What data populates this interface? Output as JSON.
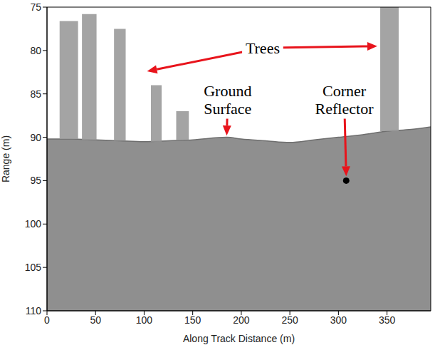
{
  "chart_data": {
    "type": "image",
    "xlabel": "Along Track Distance (m)",
    "ylabel": "Range (m)",
    "xlim": [
      0,
      395
    ],
    "ylim": [
      75,
      110
    ],
    "xticks": [
      0,
      50,
      100,
      150,
      200,
      250,
      300,
      350
    ],
    "yticks": [
      75,
      80,
      85,
      90,
      95,
      100,
      105,
      110
    ],
    "grid": false,
    "ground_surface": {
      "x": [
        0,
        25,
        50,
        75,
        100,
        125,
        150,
        185,
        200,
        225,
        250,
        275,
        300,
        325,
        350,
        375,
        395
      ],
      "y": [
        90.2,
        90.2,
        90.3,
        90.4,
        90.5,
        90.4,
        90.3,
        90.0,
        90.2,
        90.4,
        90.6,
        90.3,
        90.0,
        89.7,
        89.3,
        89.1,
        88.8
      ],
      "color": "#8f8f8f"
    },
    "trees": [
      {
        "x1": 13,
        "x2": 32,
        "top": 76.6,
        "base": 90.2
      },
      {
        "x1": 36,
        "x2": 51,
        "top": 75.8,
        "base": 90.3
      },
      {
        "x1": 69,
        "x2": 81,
        "top": 77.5,
        "base": 90.4
      },
      {
        "x1": 107,
        "x2": 118,
        "top": 84,
        "base": 90.5
      },
      {
        "x1": 133,
        "x2": 146,
        "top": 87,
        "base": 90.3
      },
      {
        "x1": 343,
        "x2": 362,
        "top": 75,
        "base": 89.3
      }
    ],
    "trees_color": "#9a9a9a",
    "corner_reflector": {
      "x": 308,
      "y": 95,
      "color": "#000000"
    },
    "annotations": [
      {
        "text": "Trees",
        "x": 222,
        "y": 79.7,
        "targets": [
          [
            103,
            82.4
          ],
          [
            340,
            79.5
          ]
        ]
      },
      {
        "text": "Ground Surface",
        "x": 186,
        "y": 85.7,
        "targets": [
          [
            185,
            89.8
          ]
        ]
      },
      {
        "text": "Corner Reflector",
        "x": 306,
        "y": 85.7,
        "targets": [
          [
            308,
            94.5
          ]
        ]
      }
    ],
    "annotation_color": "#e8141c"
  }
}
